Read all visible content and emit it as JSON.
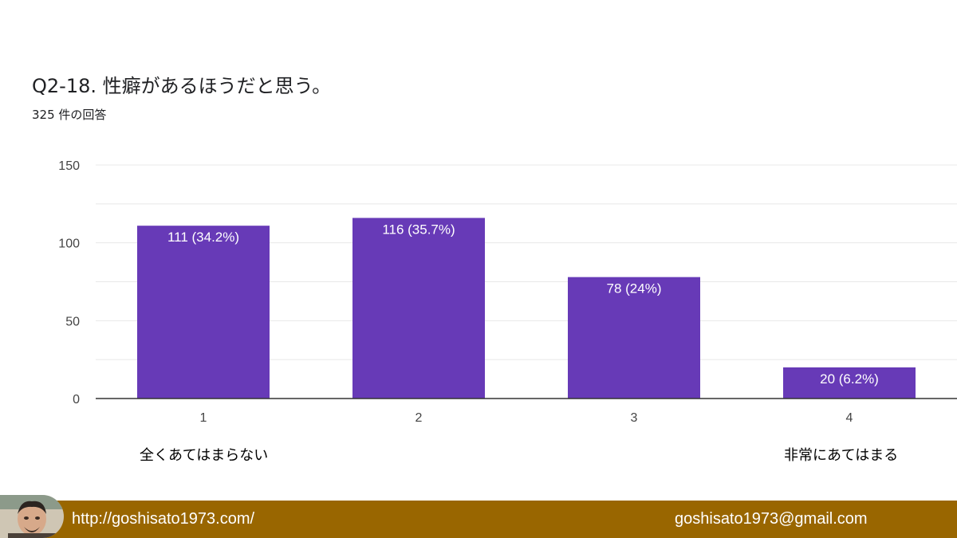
{
  "question": {
    "title": "Q2-18.  性癖があるほうだと思う。",
    "response_count": "325 件の回答"
  },
  "scale": {
    "low_label": "全くあてはまらない",
    "high_label": "非常にあてはまる"
  },
  "footer": {
    "url": "http://goshisato1973.com/",
    "email": "goshisato1973@gmail.com"
  },
  "colors": {
    "bar": "#673ab7",
    "footer": "#996600"
  },
  "chart_data": {
    "type": "bar",
    "categories": [
      "1",
      "2",
      "3",
      "4"
    ],
    "values": [
      111,
      116,
      78,
      20
    ],
    "data_labels": [
      "111 (34.2%)",
      "116 (35.7%)",
      "78 (24%)",
      "20 (6.2%)"
    ],
    "yticks": [
      0,
      50,
      100,
      150
    ],
    "ylim": [
      0,
      150
    ],
    "grid": true
  }
}
